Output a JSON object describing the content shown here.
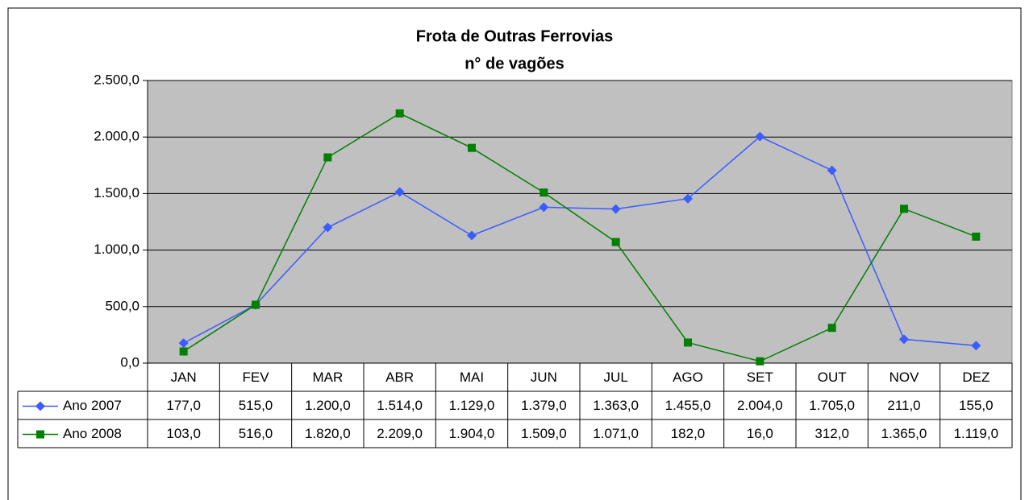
{
  "chart_data": {
    "type": "line",
    "title": "Frota de Outras Ferrovias",
    "subtitle": "n° de vagões",
    "categories": [
      "JAN",
      "FEV",
      "MAR",
      "ABR",
      "MAI",
      "JUN",
      "JUL",
      "AGO",
      "SET",
      "OUT",
      "NOV",
      "DEZ"
    ],
    "series": [
      {
        "name": "Ano 2007",
        "color": "#3c5cff",
        "marker": "diamond",
        "values": [
          177,
          515,
          1200,
          1514,
          1129,
          1379,
          1363,
          1455,
          2004,
          1705,
          211,
          155
        ],
        "value_labels": [
          "177,0",
          "515,0",
          "1.200,0",
          "1.514,0",
          "1.129,0",
          "1.379,0",
          "1.363,0",
          "1.455,0",
          "2.004,0",
          "1.705,0",
          "211,0",
          "155,0"
        ]
      },
      {
        "name": "Ano 2008",
        "color": "#008000",
        "marker": "square",
        "values": [
          103,
          516,
          1820,
          2209,
          1904,
          1509,
          1071,
          182,
          16,
          312,
          1365,
          1119
        ],
        "value_labels": [
          "103,0",
          "516,0",
          "1.820,0",
          "2.209,0",
          "1.904,0",
          "1.509,0",
          "1.071,0",
          "182,0",
          "16,0",
          "312,0",
          "1.365,0",
          "1.119,0"
        ]
      }
    ],
    "ylim": [
      0,
      2500
    ],
    "yticks": [
      {
        "value": 0,
        "label": "0,0"
      },
      {
        "value": 500,
        "label": "500,0"
      },
      {
        "value": 1000,
        "label": "1.000,0"
      },
      {
        "value": 1500,
        "label": "1.500,0"
      },
      {
        "value": 2000,
        "label": "2.000,0"
      },
      {
        "value": 2500,
        "label": "2.500,0"
      }
    ],
    "grid": true,
    "data_table": true
  }
}
